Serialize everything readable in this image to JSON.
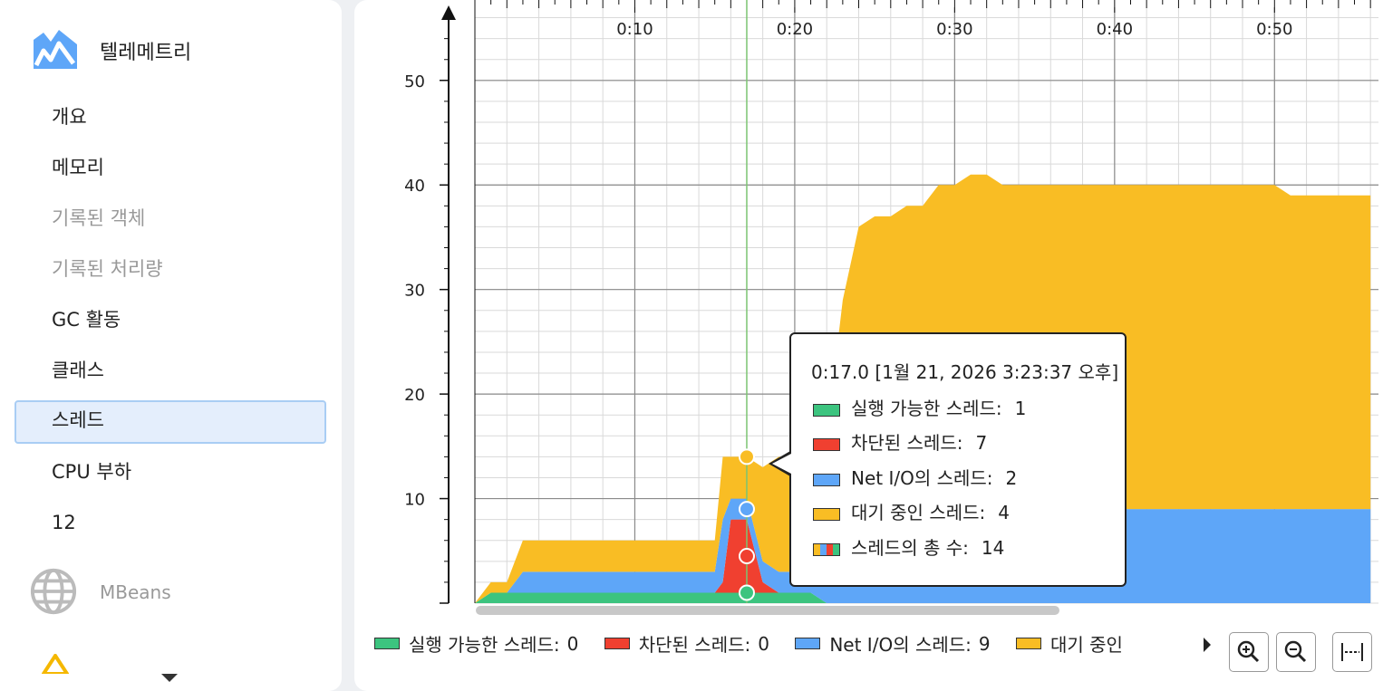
{
  "sidebar": {
    "groups": [
      {
        "title": "텔레메트리",
        "icon": "telemetry-chart-icon",
        "items": [
          {
            "label": "개요",
            "enabled": true,
            "selected": false
          },
          {
            "label": "메모리",
            "enabled": true,
            "selected": false
          },
          {
            "label": "기록된 객체",
            "enabled": false,
            "selected": false
          },
          {
            "label": "기록된 처리량",
            "enabled": false,
            "selected": false
          },
          {
            "label": "GC 활동",
            "enabled": true,
            "selected": false
          },
          {
            "label": "클래스",
            "enabled": true,
            "selected": false
          },
          {
            "label": "스레드",
            "enabled": true,
            "selected": true
          },
          {
            "label": "CPU 부하",
            "enabled": true,
            "selected": false
          },
          {
            "label": "12",
            "enabled": true,
            "selected": false
          }
        ]
      },
      {
        "title": "MBeans",
        "icon": "globe-icon",
        "enabled": false
      }
    ]
  },
  "colors": {
    "runnable": "#3cc47f",
    "blocked": "#f04030",
    "net_io": "#5ea6f8",
    "waiting": "#f9bd24",
    "accent_line": "#7cc472"
  },
  "chart_data": {
    "type": "area",
    "stacked": true,
    "x_unit": "elapsed time (m:ss)",
    "x_ticks": [
      "0:10",
      "0:20",
      "0:30",
      "0:40",
      "0:50"
    ],
    "x_tick_values": [
      10,
      20,
      30,
      40,
      50
    ],
    "xlim": [
      0,
      56.5
    ],
    "y_ticks": [
      "10",
      "20",
      "30",
      "40",
      "50"
    ],
    "y_tick_values": [
      10,
      20,
      30,
      40,
      50
    ],
    "ylim": [
      0,
      57
    ],
    "grid": true,
    "x": [
      0,
      1,
      2,
      3,
      4,
      5,
      6,
      7,
      8,
      9,
      10,
      11,
      12,
      13,
      14,
      15,
      15.5,
      16,
      17,
      18,
      19,
      20,
      21,
      22,
      23,
      24,
      25,
      26,
      27,
      28,
      29,
      30,
      31,
      32,
      33,
      34,
      35,
      36,
      37,
      38,
      39,
      40,
      41,
      42,
      43,
      44,
      45,
      46,
      47,
      48,
      49,
      50,
      51,
      52,
      53,
      54,
      55,
      56
    ],
    "series": [
      {
        "name": "실행 가능한 스레드",
        "color": "#3cc47f",
        "values": [
          0,
          1,
          1,
          1,
          1,
          1,
          1,
          1,
          1,
          1,
          1,
          1,
          1,
          1,
          1,
          1,
          1,
          1,
          1,
          1,
          1,
          1,
          1,
          0,
          0,
          0,
          0,
          0,
          0,
          0,
          0,
          0,
          0,
          0,
          0,
          0,
          0,
          0,
          0,
          0,
          0,
          0,
          0,
          0,
          0,
          0,
          0,
          0,
          0,
          0,
          0,
          0,
          0,
          0,
          0,
          0,
          0,
          0
        ]
      },
      {
        "name": "차단된 스레드",
        "color": "#f04030",
        "values": [
          0,
          0,
          0,
          0,
          0,
          0,
          0,
          0,
          0,
          0,
          0,
          0,
          0,
          0,
          0,
          0,
          1,
          7,
          7,
          1,
          0,
          0,
          0,
          0,
          0,
          0,
          0,
          0,
          0,
          0,
          0,
          0,
          0,
          0,
          0,
          0,
          0,
          0,
          0,
          0,
          0,
          0,
          0,
          0,
          0,
          0,
          0,
          0,
          0,
          0,
          0,
          0,
          0,
          0,
          0,
          0,
          0,
          0
        ]
      },
      {
        "name": "Net I/O의 스레드",
        "color": "#5ea6f8",
        "values": [
          0,
          0,
          0,
          2,
          2,
          2,
          2,
          2,
          2,
          2,
          2,
          2,
          2,
          2,
          2,
          2,
          6,
          2,
          2,
          2,
          2,
          2,
          2,
          2,
          2,
          9,
          9,
          9,
          9,
          9,
          9,
          9,
          9,
          9,
          9,
          9,
          9,
          9,
          9,
          9,
          9,
          9,
          9,
          9,
          9,
          9,
          9,
          9,
          9,
          9,
          9,
          9,
          9,
          9,
          9,
          9,
          9,
          9
        ]
      },
      {
        "name": "대기 중인 스레드",
        "color": "#f9bd24",
        "values": [
          0,
          1,
          1,
          3,
          3,
          3,
          3,
          3,
          3,
          3,
          3,
          3,
          3,
          3,
          3,
          3,
          6,
          4,
          4,
          9,
          11,
          11,
          12,
          14,
          27,
          27,
          28,
          28,
          29,
          29,
          31,
          31,
          32,
          32,
          31,
          31,
          31,
          31,
          31,
          31,
          31,
          31,
          31,
          31,
          31,
          31,
          31,
          31,
          31,
          31,
          31,
          31,
          30,
          30,
          30,
          30,
          30,
          30
        ]
      }
    ],
    "cursor_x": 17,
    "legend_placement": "bottom"
  },
  "legend": {
    "items": [
      {
        "label": "실행 가능한 스레드:",
        "value": "0",
        "color": "#3cc47f"
      },
      {
        "label": "차단된 스레드:",
        "value": "0",
        "color": "#f04030"
      },
      {
        "label": "Net I/O의 스레드:",
        "value": "9",
        "color": "#5ea6f8"
      },
      {
        "label": "대기 중인",
        "value": "",
        "color": "#f9bd24"
      }
    ],
    "more_icon": "legend-more-arrow-icon"
  },
  "toolbar": {
    "buttons": [
      {
        "icon": "zoom-in-icon",
        "name": "zoom-in-button"
      },
      {
        "icon": "zoom-out-icon",
        "name": "zoom-out-button"
      },
      {
        "icon": "fit-to-width-icon",
        "name": "fit-button"
      }
    ]
  },
  "tooltip": {
    "time": "0:17.0 [1월 21, 2026 3:23:37 오후]",
    "rows": [
      {
        "label": "실행 가능한 스레드:",
        "value": "1",
        "color": "#3cc47f"
      },
      {
        "label": "차단된 스레드:",
        "value": "7",
        "color": "#f04030"
      },
      {
        "label": "Net I/O의 스레드:",
        "value": "2",
        "color": "#5ea6f8"
      },
      {
        "label": "대기 중인 스레드:",
        "value": "4",
        "color": "#f9bd24"
      },
      {
        "label": "스레드의 총 수:",
        "value": "14",
        "multicolor": true
      }
    ]
  }
}
